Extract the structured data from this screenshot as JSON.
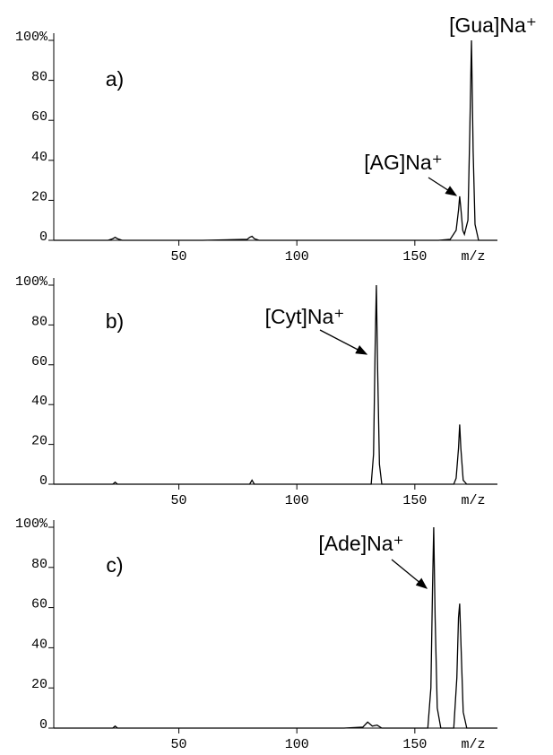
{
  "chart_data": [
    {
      "type": "line",
      "panel_label": "a)",
      "color": "#000000",
      "x_label": "m/z",
      "xlim": [
        -3,
        185
      ],
      "ylim": [
        0,
        100
      ],
      "xticks": [
        50,
        100,
        150
      ],
      "yticks": [
        0,
        20,
        40,
        60,
        80,
        {
          "value": 100,
          "label": "100%"
        }
      ],
      "x": [
        -3,
        20,
        22,
        23,
        24,
        26,
        60,
        79,
        80,
        81,
        82,
        84,
        120,
        160,
        165,
        167.5,
        168.5,
        169,
        169.5,
        170.3,
        171,
        172.5,
        173.3,
        174,
        174.7,
        175.5,
        177,
        185
      ],
      "values": [
        0,
        0,
        0.8,
        1.5,
        0.8,
        0,
        0,
        0.5,
        1.5,
        2,
        0.8,
        0,
        0,
        0,
        0.5,
        5,
        15,
        22,
        16,
        5,
        3,
        10,
        55,
        100,
        45,
        8,
        0,
        0
      ],
      "annotations": [
        {
          "text": "[AG]Na⁺"
        },
        {
          "text": "[Gua]Na⁺"
        }
      ]
    },
    {
      "type": "line",
      "panel_label": "b)",
      "color": "#000000",
      "x_label": "m/z",
      "xlim": [
        -3,
        185
      ],
      "ylim": [
        0,
        100
      ],
      "xticks": [
        50,
        100,
        150
      ],
      "yticks": [
        0,
        20,
        40,
        60,
        80,
        {
          "value": 100,
          "label": "100%"
        }
      ],
      "x": [
        -3,
        22,
        23,
        24,
        60,
        80,
        81,
        82,
        120,
        131.5,
        132.5,
        133.2,
        133.7,
        134.2,
        135,
        136,
        150,
        166.5,
        167.5,
        168.5,
        169,
        169.5,
        170.5,
        172,
        185
      ],
      "values": [
        0,
        0,
        1,
        0,
        0,
        0,
        2,
        0,
        0,
        0,
        15,
        70,
        100,
        60,
        10,
        0,
        0,
        0,
        3,
        18,
        30,
        18,
        2,
        0,
        0
      ],
      "annotations": [
        {
          "text": "[Cyt]Na⁺"
        }
      ]
    },
    {
      "type": "line",
      "panel_label": "c)",
      "color": "#000000",
      "x_label": "m/z",
      "xlim": [
        -3,
        185
      ],
      "ylim": [
        0,
        100
      ],
      "xticks": [
        50,
        100,
        150
      ],
      "yticks": [
        0,
        20,
        40,
        60,
        80,
        {
          "value": 100,
          "label": "100%"
        }
      ],
      "x": [
        -3,
        22,
        23,
        24,
        60,
        120,
        128,
        130,
        132,
        134,
        136,
        150,
        155.5,
        156.8,
        157.5,
        158,
        158.6,
        159.5,
        161,
        164,
        166.5,
        167.8,
        168.5,
        169,
        169.6,
        170.5,
        172,
        185
      ],
      "values": [
        0,
        0,
        1,
        0,
        0,
        0,
        0.5,
        3,
        1,
        1.5,
        0,
        0,
        0,
        20,
        70,
        100,
        55,
        10,
        0,
        0,
        0,
        25,
        55,
        62,
        40,
        8,
        0,
        0
      ],
      "annotations": [
        {
          "text": "[Ade]Na⁺"
        }
      ]
    }
  ]
}
